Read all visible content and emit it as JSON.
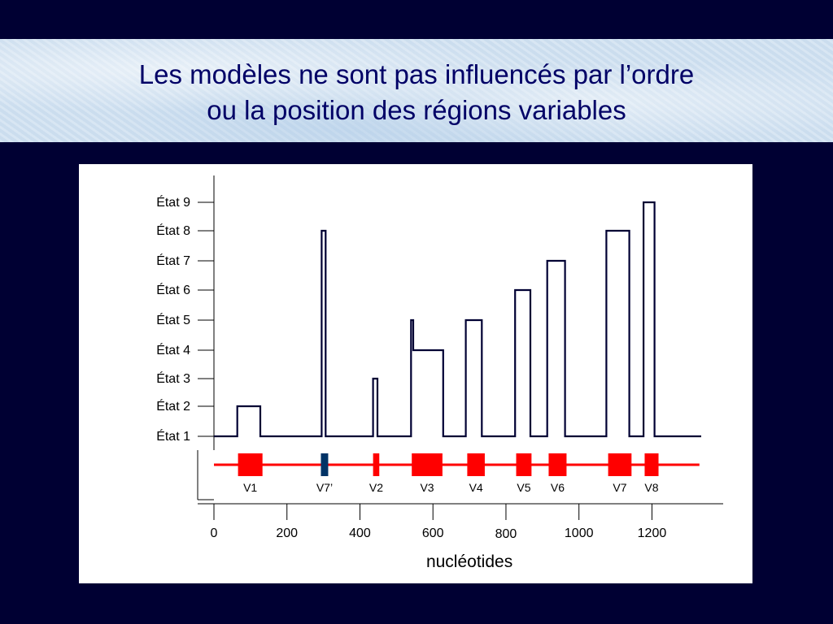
{
  "slide": {
    "title_line1": "Les modèles ne sont pas influencés par l’ordre",
    "title_line2": "ou la position des régions variables"
  },
  "colors": {
    "background": "#000033",
    "title_text": "#000066",
    "step_line": "#000033",
    "region_bar": "#ff0000",
    "region_v7prime": "#003366",
    "axis": "#000000"
  },
  "chart_data": {
    "type": "line",
    "xlabel": "nucléotides",
    "ylabel": "",
    "xlim": [
      0,
      1350
    ],
    "x_ticks": [
      0,
      200,
      400,
      600,
      800,
      1000,
      1200
    ],
    "x_tick_labels": [
      "0",
      "200",
      "400",
      "600",
      "800",
      "1000",
      "1200"
    ],
    "y_categories": [
      "État 1",
      "État 2",
      "État 3",
      "État 4",
      "État 5",
      "État 6",
      "État 7",
      "État 8",
      "État 9"
    ],
    "series": [
      {
        "values_description": "",
        "steps": [
          [
            0,
            1
          ],
          [
            64,
            1
          ],
          [
            64,
            2
          ],
          [
            127,
            2
          ],
          [
            127,
            1
          ],
          [
            295,
            1
          ],
          [
            295,
            8
          ],
          [
            306,
            8
          ],
          [
            306,
            1
          ],
          [
            436,
            1
          ],
          [
            436,
            3
          ],
          [
            448,
            3
          ],
          [
            448,
            1
          ],
          [
            540,
            1
          ],
          [
            540,
            5
          ],
          [
            546,
            5
          ],
          [
            546,
            4
          ],
          [
            628,
            4
          ],
          [
            628,
            1
          ],
          [
            690,
            1
          ],
          [
            690,
            5
          ],
          [
            734,
            5
          ],
          [
            734,
            1
          ],
          [
            825,
            1
          ],
          [
            825,
            6
          ],
          [
            867,
            6
          ],
          [
            867,
            1
          ],
          [
            913,
            1
          ],
          [
            913,
            7
          ],
          [
            962,
            7
          ],
          [
            962,
            1
          ],
          [
            1075,
            1
          ],
          [
            1075,
            8
          ],
          [
            1138,
            8
          ],
          [
            1138,
            1
          ],
          [
            1177,
            1
          ],
          [
            1177,
            9
          ],
          [
            1207,
            9
          ],
          [
            1207,
            1
          ],
          [
            1335,
            1
          ]
        ]
      }
    ],
    "regions": [
      {
        "label": "V1",
        "start": 66,
        "end": 133,
        "color": "#ff0000"
      },
      {
        "label": "V7’",
        "start": 293,
        "end": 313,
        "color": "#003366"
      },
      {
        "label": "V2",
        "start": 436,
        "end": 453,
        "color": "#ff0000"
      },
      {
        "label": "V3",
        "start": 542,
        "end": 626,
        "color": "#ff0000"
      },
      {
        "label": "V4",
        "start": 694,
        "end": 742,
        "color": "#ff0000"
      },
      {
        "label": "V5",
        "start": 828,
        "end": 870,
        "color": "#ff0000"
      },
      {
        "label": "V6",
        "start": 917,
        "end": 966,
        "color": "#ff0000"
      },
      {
        "label": "V7",
        "start": 1080,
        "end": 1144,
        "color": "#ff0000"
      },
      {
        "label": "V8",
        "start": 1180,
        "end": 1218,
        "color": "#ff0000"
      }
    ],
    "region_track": {
      "start": 0,
      "end": 1330
    }
  }
}
